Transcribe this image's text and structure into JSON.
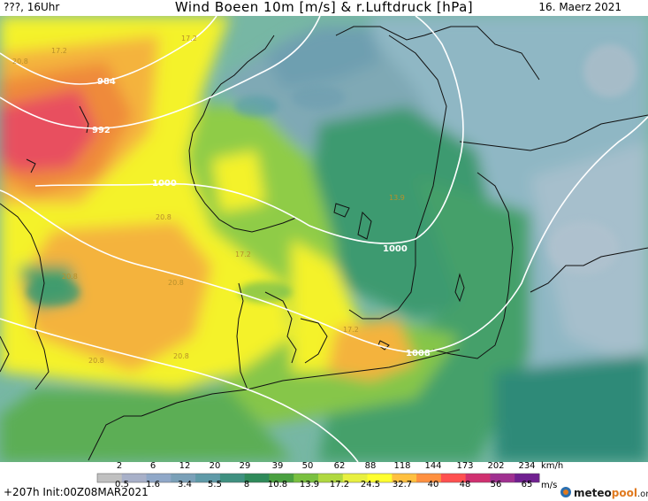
{
  "header": {
    "left": "???, 16Uhr",
    "title": "Wind Boeen 10m [m/s] & r.Luftdruck [hPa]",
    "date": "16. Maerz 2021"
  },
  "map": {
    "isobars": [
      {
        "label": "984",
        "value": 984
      },
      {
        "label": "992",
        "value": 992
      },
      {
        "label": "1000",
        "value": 1000
      },
      {
        "label": "1000",
        "value": 1000
      },
      {
        "label": "1008",
        "value": 1008
      }
    ],
    "contour_labels": [
      "17.2",
      "17.2",
      "17.2",
      "17.2",
      "20.8",
      "20.8",
      "20.8",
      "20.8",
      "20.8",
      "20.8",
      "13.9"
    ]
  },
  "legend": {
    "kmh_ticks": [
      "2",
      "6",
      "12",
      "20",
      "29",
      "39",
      "50",
      "62",
      "88",
      "118",
      "144",
      "173",
      "202",
      "234"
    ],
    "kmh_unit": "km/h",
    "ms_ticks": [
      "0.5",
      "1.6",
      "3.4",
      "5.5",
      "8",
      "10.8",
      "13.9",
      "17.2",
      "24.5",
      "32.7",
      "40",
      "48",
      "56",
      "65"
    ],
    "ms_unit": "m/s",
    "colors": [
      "#c0c0c0",
      "#a8b0c8",
      "#90a8c8",
      "#7aa0b8",
      "#5f9aa8",
      "#3f9080",
      "#2f8a5a",
      "#4aa040",
      "#7ac040",
      "#b0d840",
      "#e8f040",
      "#ffff30",
      "#ffc040",
      "#ff9040",
      "#ff5050",
      "#d03070",
      "#a03090",
      "#702090"
    ]
  },
  "footer": {
    "init": "+207h Init:00Z08MAR2021",
    "brand_1": "meteo",
    "brand_2": "pool",
    "brand_3": ".org"
  }
}
